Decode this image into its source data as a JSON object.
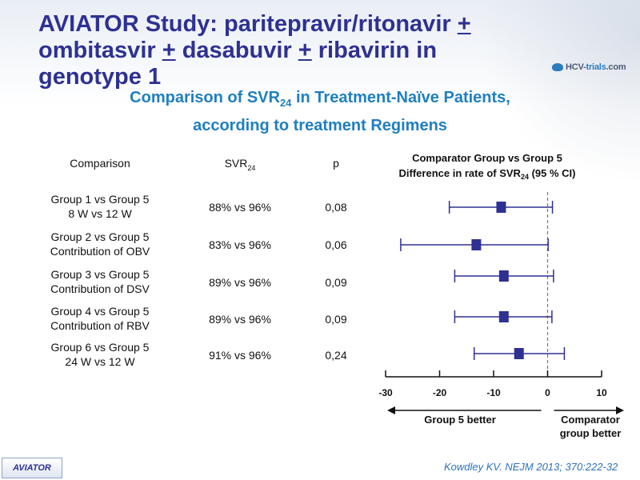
{
  "header": {
    "title_line1_pre": "AVIATOR Study: paritepravir/ritonavir ",
    "plus1": "+",
    "title_line2_a": "ombitasvir ",
    "plus2": "+",
    "title_line2_b": " dasabuvir ",
    "plus3": "+",
    "title_line2_c": " ribavirin in genotype 1",
    "logo_text_a": "HCV-",
    "logo_text_b": "trials",
    "logo_text_c": ".com"
  },
  "subtitle": {
    "line1_pre": "Comparison of SVR",
    "line1_sub": "24",
    "line1_post": " in Treatment-Naïve Patients,",
    "line2": "according to treatment Regimens"
  },
  "table": {
    "col_comparison": "Comparison",
    "col_svr": "SVR",
    "col_svr_sub": "24",
    "col_p": "p",
    "rows": [
      {
        "line1": "Group 1 vs Group 5",
        "line2": "8 W vs 12 W",
        "svr": "88% vs 96%",
        "p": "0,08"
      },
      {
        "line1": "Group 2 vs Group 5",
        "line2": "Contribution of OBV",
        "svr": "83% vs 96%",
        "p": "0,06"
      },
      {
        "line1": "Group 3 vs Group 5",
        "line2": "Contribution of DSV",
        "svr": "89% vs 96%",
        "p": "0,09"
      },
      {
        "line1": "Group 4 vs Group 5",
        "line2": "Contribution of RBV",
        "svr": "89% vs 96%",
        "p": "0,09"
      },
      {
        "line1": "Group 6 vs Group 5",
        "line2": "24 W vs 12 W",
        "svr": "91% vs 96%",
        "p": "0,24"
      }
    ]
  },
  "chart_data": {
    "type": "forest",
    "title_line1": "Comparator  Group vs Group 5",
    "title_line2_pre": "Difference in rate of SVR",
    "title_line2_sub": "24",
    "title_line2_post": " (95 % CI)",
    "xlim": [
      -30,
      10
    ],
    "ticks": [
      -30,
      -20,
      -10,
      0,
      10
    ],
    "tick_labels": [
      "-30",
      "-20",
      "-10",
      "0",
      "10"
    ],
    "reference_line": 0,
    "left_arrow_label": "Group 5 better",
    "right_arrow_label_1": "Comparator",
    "right_arrow_label_2": "group better",
    "marker_color": "#2e3192",
    "series": [
      {
        "point": -8.6,
        "lower": -18.2,
        "upper": 0.9
      },
      {
        "point": -13.2,
        "lower": -27.2,
        "upper": 0.1
      },
      {
        "point": -8.1,
        "lower": -17.2,
        "upper": 1.1
      },
      {
        "point": -8.1,
        "lower": -17.2,
        "upper": 0.8
      },
      {
        "point": -5.3,
        "lower": -13.6,
        "upper": 3.1
      }
    ]
  },
  "footer": {
    "reference": "Kowdley KV. NEJM 2013; 370:222-32",
    "badge": "AVIATOR"
  }
}
